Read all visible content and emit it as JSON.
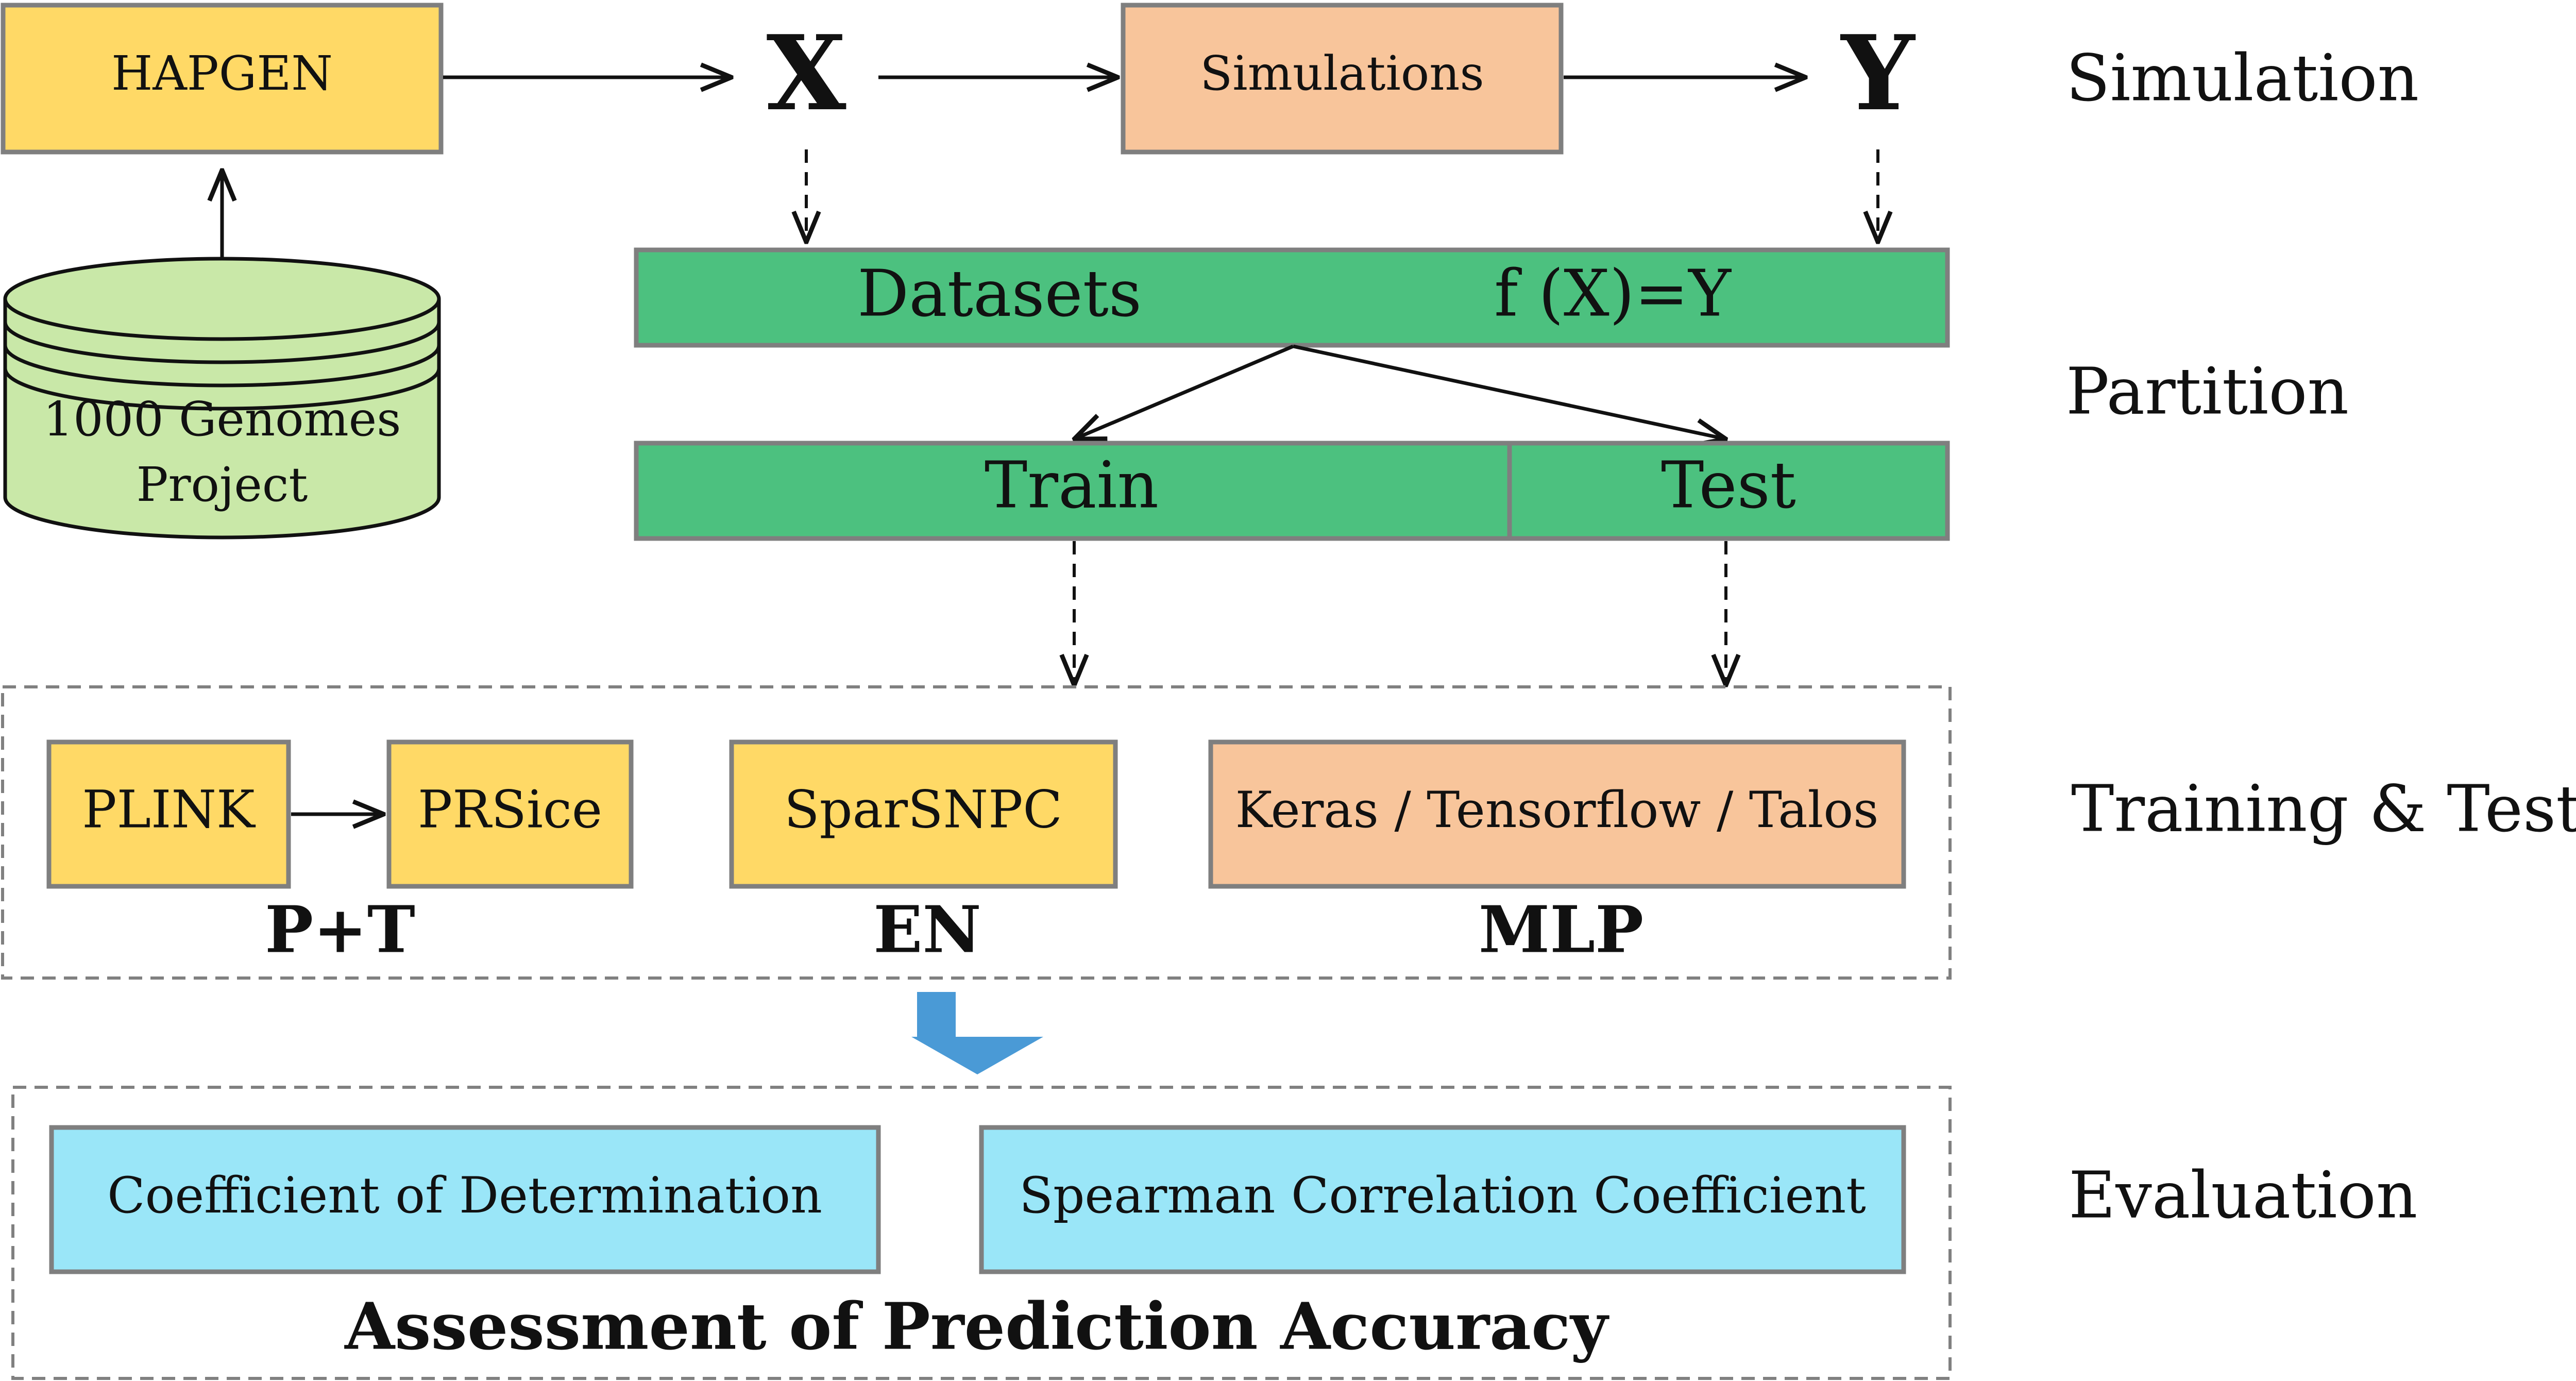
{
  "nodes": {
    "hapgen": "HAPGEN",
    "x": "X",
    "simulations": "Simulations",
    "y": "Y",
    "database": "1000 Genomes Project",
    "datasets": "Datasets",
    "function": "f (X)=Y",
    "train": "Train",
    "test": "Test",
    "plink": "PLINK",
    "prsice": "PRSice",
    "sparsnpc": "SparSNPC",
    "keras": "Keras / Tensorflow / Talos",
    "pt": "P+T",
    "en": "EN",
    "mlp": "MLP",
    "coef_det": "Coefficient of Determination",
    "spearman": "Spearman Correlation Coefficient",
    "assessment": "Assessment of Prediction Accuracy"
  },
  "stages": {
    "simulation": "Simulation",
    "partition": "Partition",
    "training_test": "Training & Test",
    "evaluation": "Evaluation"
  },
  "colors": {
    "yellow": "#FFD966",
    "peach": "#F8C59B",
    "green": "#4CC17F",
    "light_green": "#C9E8A8",
    "cyan": "#9AE6F8",
    "blue_arrow": "#4A9AD6"
  }
}
